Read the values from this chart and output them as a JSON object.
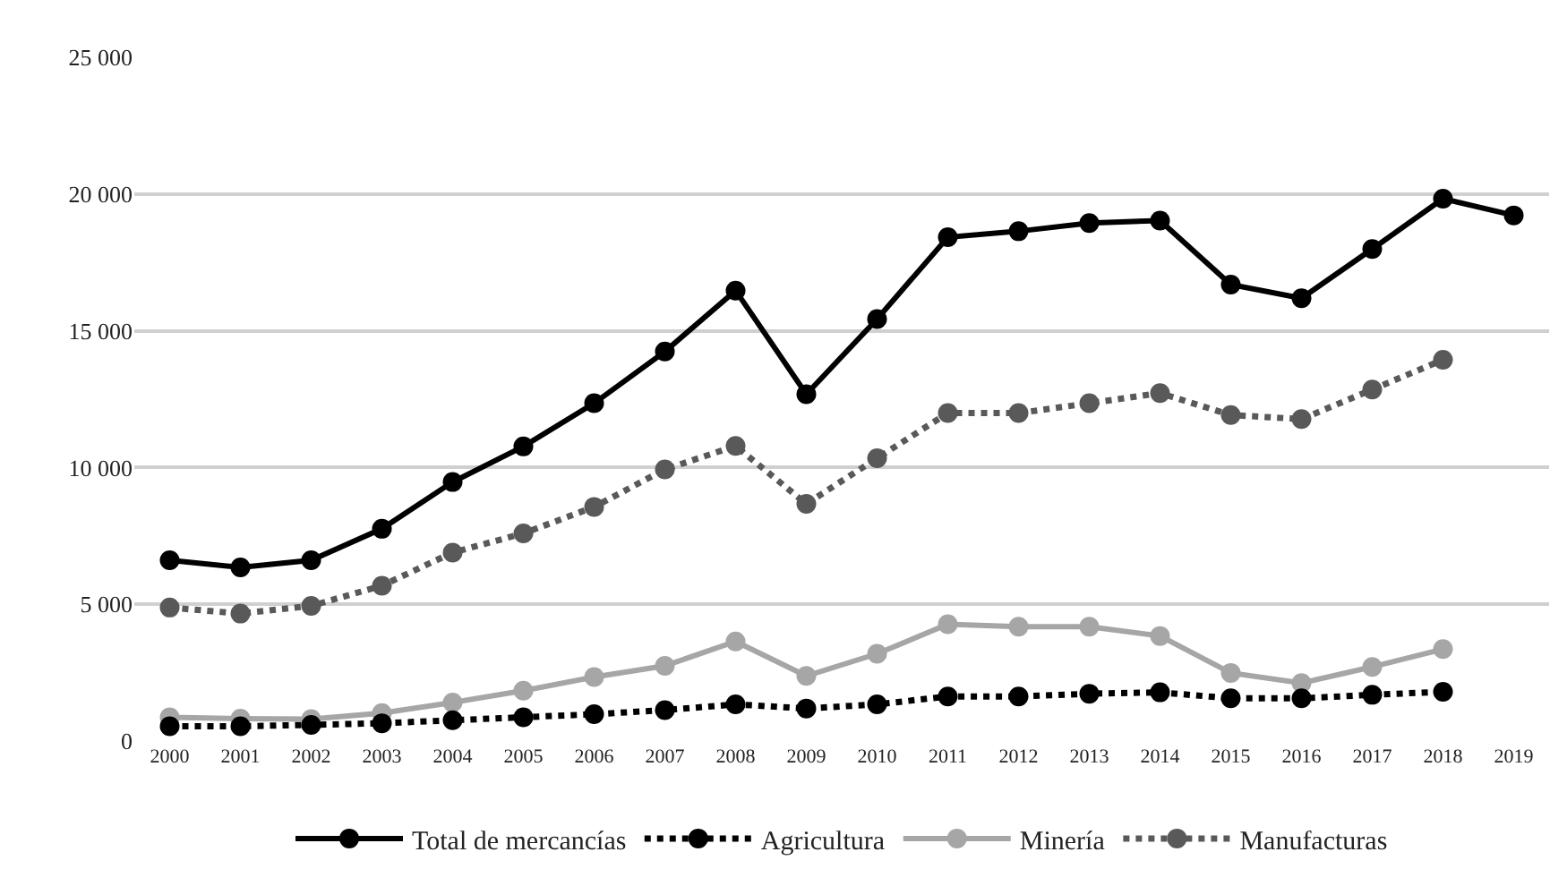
{
  "chart_data": {
    "type": "line",
    "categories": [
      "2000",
      "2001",
      "2002",
      "2003",
      "2004",
      "2005",
      "2006",
      "2007",
      "2008",
      "2009",
      "2010",
      "2011",
      "2012",
      "2013",
      "2014",
      "2015",
      "2016",
      "2017",
      "2018",
      "2019"
    ],
    "series": [
      {
        "name": "Total de mercancías",
        "color": "#000000",
        "line_style": "solid",
        "values": [
          6610,
          6350,
          6610,
          7760,
          9470,
          10770,
          12350,
          14240,
          16470,
          12680,
          15430,
          18420,
          18640,
          18940,
          19030,
          16690,
          16190,
          17990,
          19830,
          19220
        ]
      },
      {
        "name": "Agricultura",
        "color": "#000000",
        "line_style": "dotted",
        "values": [
          540,
          540,
          590,
          650,
          760,
          870,
          980,
          1130,
          1340,
          1190,
          1340,
          1630,
          1630,
          1730,
          1780,
          1560,
          1560,
          1690,
          1800,
          null
        ]
      },
      {
        "name": "Minería",
        "color": "#a6a6a6",
        "line_style": "solid",
        "values": [
          870,
          820,
          800,
          1020,
          1410,
          1840,
          2340,
          2750,
          3640,
          2380,
          3190,
          4270,
          4180,
          4180,
          3840,
          2490,
          2120,
          2710,
          3360,
          null
        ]
      },
      {
        "name": "Manufacturas",
        "color": "#595959",
        "line_style": "dotted",
        "values": [
          4880,
          4660,
          4940,
          5680,
          6890,
          7590,
          8560,
          9930,
          10790,
          8670,
          10340,
          11990,
          11990,
          12350,
          12720,
          11920,
          11770,
          12850,
          13940,
          null
        ]
      }
    ],
    "ylim": [
      0,
      25000
    ],
    "yticks": [
      {
        "value": 0,
        "label": "0"
      },
      {
        "value": 5000,
        "label": "5 000"
      },
      {
        "value": 10000,
        "label": "10 000"
      },
      {
        "value": 15000,
        "label": "15 000"
      },
      {
        "value": 20000,
        "label": "20 000"
      },
      {
        "value": 25000,
        "label": "25 000"
      }
    ],
    "grid": "y",
    "legend": "bottom",
    "marker": "circle"
  }
}
